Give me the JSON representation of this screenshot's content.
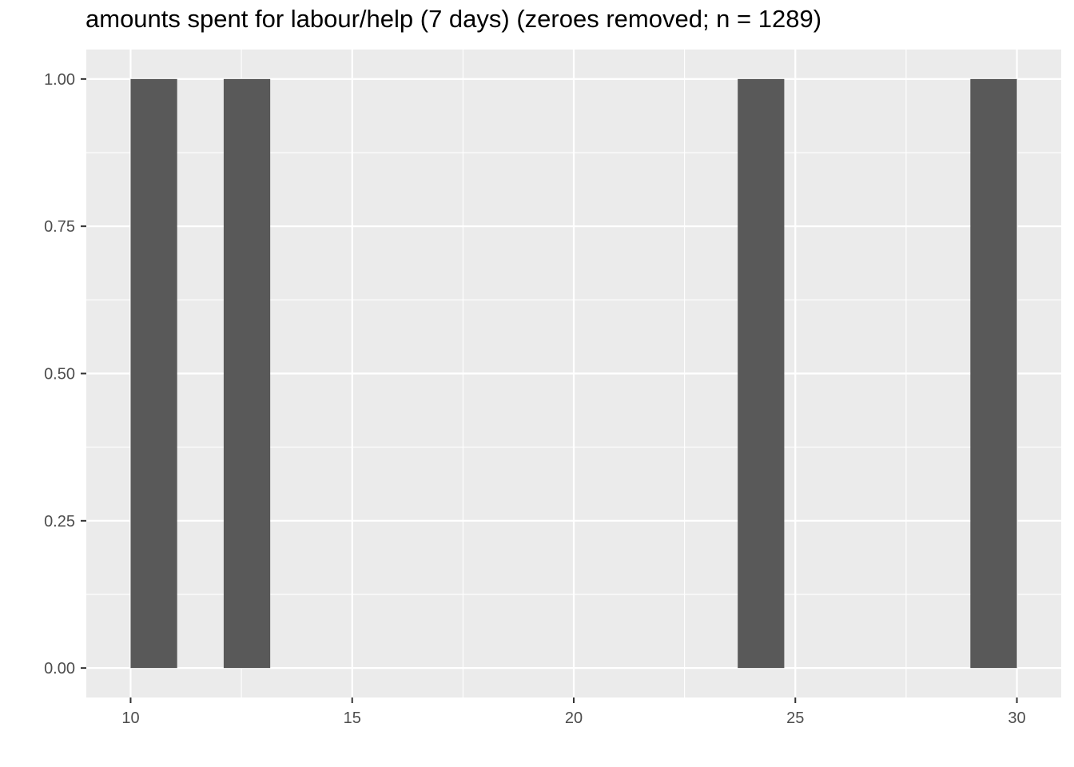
{
  "chart_data": {
    "type": "bar",
    "title": "amounts spent for labour/help (7 days) (zeroes removed; n = 1289)",
    "xlabel": "",
    "ylabel": "",
    "x_ticks": [
      "10",
      "15",
      "20",
      "25",
      "30"
    ],
    "y_ticks": [
      "0.00",
      "0.25",
      "0.50",
      "0.75",
      "1.00"
    ],
    "xlim": [
      9,
      31
    ],
    "ylim": [
      -0.05,
      1.05
    ],
    "bars": [
      {
        "x_start": 10.0,
        "x_end": 11.05,
        "value": 1
      },
      {
        "x_start": 12.1,
        "x_end": 13.15,
        "value": 1
      },
      {
        "x_start": 23.7,
        "x_end": 24.75,
        "value": 1
      },
      {
        "x_start": 28.95,
        "x_end": 30.0,
        "value": 1
      }
    ],
    "grid": true,
    "colors": {
      "panel": "#ebebeb",
      "grid": "#ffffff",
      "bar": "#595959",
      "tick_text": "#4d4d4d"
    }
  }
}
